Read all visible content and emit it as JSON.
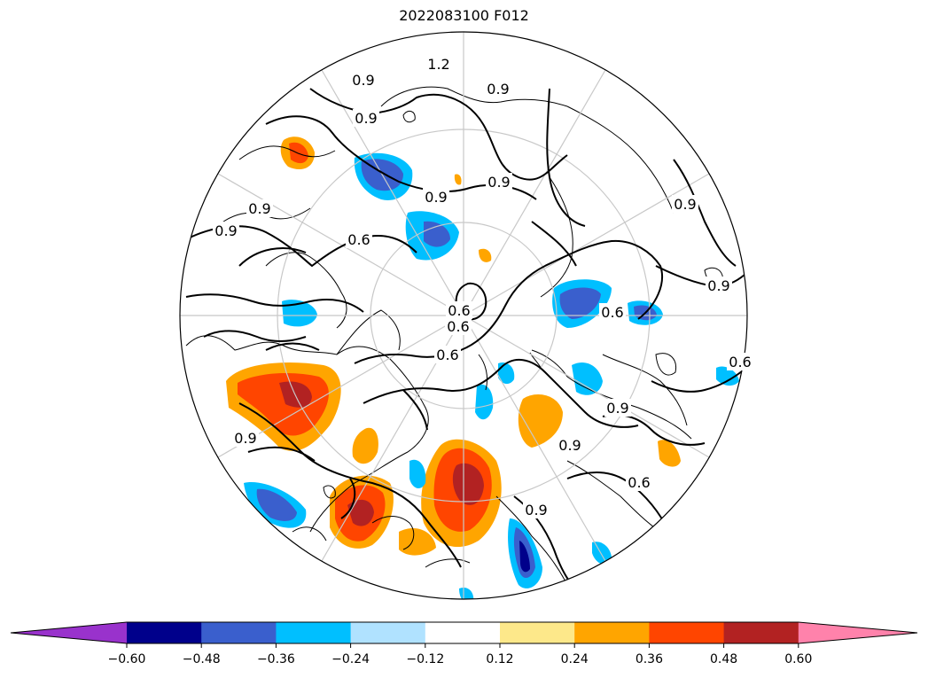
{
  "title": "2022083100 F012",
  "colorbar": {
    "ticks": [
      "−0.60",
      "−0.48",
      "−0.36",
      "−0.24",
      "−0.12",
      "0.12",
      "0.24",
      "0.36",
      "0.48",
      "0.60"
    ],
    "colors": [
      "#9932cc",
      "#00008b",
      "#3a5fcd",
      "#00bfff",
      "#b0e2ff",
      "#ffffff",
      "#fde88a",
      "#ffa500",
      "#ff4500",
      "#b22222",
      "#ff82ab"
    ],
    "extend": "both"
  },
  "contour_labels": [
    "0.9",
    "0.9",
    "0.9",
    "0.9",
    "0.9",
    "0.9",
    "0.6",
    "0.6",
    "0.6",
    "0.6",
    "0.9",
    "0.9",
    "0.6",
    "0.9",
    "0.9",
    "0.6",
    "0.9",
    "0.9",
    "0.6",
    "0.9",
    "1.2"
  ],
  "map": {
    "projection": "north-polar-stereographic",
    "graticule": true
  }
}
